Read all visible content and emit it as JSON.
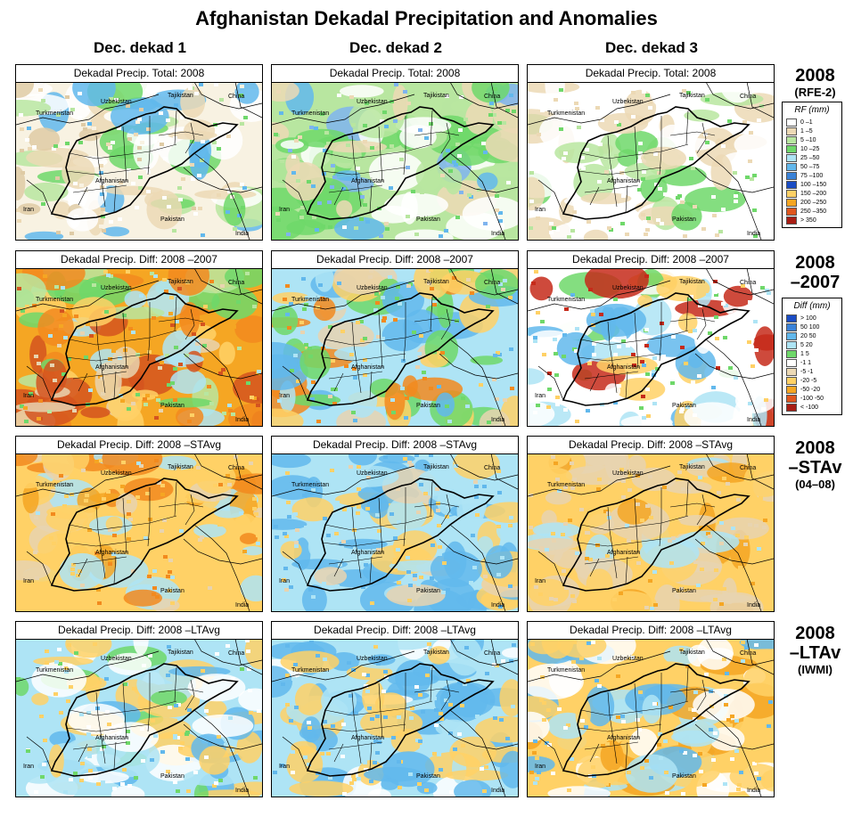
{
  "title": "Afghanistan Dekadal Precipitation and Anomalies",
  "columns": [
    "Dec. dekad 1",
    "Dec. dekad 2",
    "Dec. dekad 3"
  ],
  "rows": [
    {
      "panel_title": "Dekadal Precip. Total: 2008",
      "head_main": "2008",
      "head_sub": "(RFE-2)",
      "kind": "total",
      "palette": [
        [
          "#f8f2e2",
          "#dfcba5",
          "#ecd9b5",
          "#ffffff",
          "#ffffff",
          "#b8e6a0",
          "#6fd86a",
          "#62b8ec"
        ],
        [
          "#b8e6a0",
          "#6fd86a",
          "#62b8ec",
          "#ecd9b5",
          "#7fb4ee",
          "#ffffff",
          "#b8e6a0",
          "#6fd86a"
        ],
        [
          "#ffffff",
          "#ffffff",
          "#ecd9b5",
          "#b8e6a0",
          "#ecd9b5",
          "#ffffff",
          "#ffffff",
          "#6fd86a"
        ]
      ]
    },
    {
      "panel_title": "Dekadal Precip. Diff:  2008 –2007",
      "head_main": "2008",
      "head_sub2": "–2007",
      "kind": "diff",
      "palette": [
        [
          "#f5a623",
          "#f28a1e",
          "#ffd166",
          "#e8d4b0",
          "#b8e6a0",
          "#aee4f5",
          "#6fd86a",
          "#d4531f"
        ],
        [
          "#aee4f5",
          "#ffd166",
          "#6fd86a",
          "#f28a1e",
          "#62b8ec",
          "#e8d4b0",
          "#6fd86a",
          "#aee4f5"
        ],
        [
          "#ffffff",
          "#ffffff",
          "#aee4f5",
          "#ffd166",
          "#6fd86a",
          "#62b8ec",
          "#ffffff",
          "#c62a1a"
        ]
      ]
    },
    {
      "panel_title": "Dekadal Precip. Diff:  2008 –STAvg",
      "head_main": "2008",
      "head_sub2": "–STAv",
      "head_sub": "(04–08)",
      "kind": "diff",
      "palette": [
        [
          "#ffd166",
          "#f5a623",
          "#ffd166",
          "#e8d4b0",
          "#aee4f5",
          "#ffd166",
          "#f28a1e",
          "#ffd166"
        ],
        [
          "#aee4f5",
          "#62b8ec",
          "#ffd166",
          "#aee4f5",
          "#e8d4b0",
          "#62b8ec",
          "#ffd166",
          "#aee4f5"
        ],
        [
          "#ffd166",
          "#e8d4b0",
          "#ffd166",
          "#f5a623",
          "#e8d4b0",
          "#ffd166",
          "#aee4f5",
          "#e8d4b0"
        ]
      ]
    },
    {
      "panel_title": "Dekadal Precip. Diff:  2008 –LTAvg",
      "head_main": "2008",
      "head_sub2": "–LTAv",
      "head_sub": "(IWMI)",
      "kind": "diff",
      "palette": [
        [
          "#aee4f5",
          "#6fd86a",
          "#ffd166",
          "#ffffff",
          "#62b8ec",
          "#ffd166",
          "#aee4f5",
          "#ffffff"
        ],
        [
          "#aee4f5",
          "#62b8ec",
          "#ffd166",
          "#ffffff",
          "#62b8ec",
          "#aee4f5",
          "#ffd166",
          "#62b8ec"
        ],
        [
          "#ffd166",
          "#ffffff",
          "#ffd166",
          "#f5a623",
          "#aee4f5",
          "#ffffff",
          "#ffd166",
          "#62b8ec"
        ]
      ]
    }
  ],
  "map_labels": [
    "Uzbekistan",
    "Tajikistan",
    "China",
    "Turkmenistan",
    "Afghanistan",
    "Iran",
    "Pakistan",
    "India"
  ],
  "legend_rf": {
    "title": "RF (mm)",
    "items": [
      {
        "label": "0 –1",
        "color": "#ffffff"
      },
      {
        "label": "1 –5",
        "color": "#ecd9b5"
      },
      {
        "label": "5 –10",
        "color": "#b8e6a0"
      },
      {
        "label": "10 –25",
        "color": "#6fd86a"
      },
      {
        "label": "25 –50",
        "color": "#aee4f5"
      },
      {
        "label": "50 –75",
        "color": "#62b8ec"
      },
      {
        "label": "75 –100",
        "color": "#3a82d8"
      },
      {
        "label": "100 –150",
        "color": "#1a4cc4"
      },
      {
        "label": "150 –200",
        "color": "#ffd166"
      },
      {
        "label": "200 –250",
        "color": "#f5a623"
      },
      {
        "label": "250 –350",
        "color": "#e0561e"
      },
      {
        "label": "> 350",
        "color": "#a81d14"
      }
    ]
  },
  "legend_diff": {
    "title": "Diff (mm)",
    "items": [
      {
        "label": "> 100",
        "color": "#1a4cc4"
      },
      {
        "label": "50  100",
        "color": "#3a82d8"
      },
      {
        "label": "20  50",
        "color": "#62b8ec"
      },
      {
        "label": "5  20",
        "color": "#aee4f5"
      },
      {
        "label": "1  5",
        "color": "#6fd86a"
      },
      {
        "label": "-1  1",
        "color": "#ffffff"
      },
      {
        "label": "-5  -1",
        "color": "#ecd9b5"
      },
      {
        "label": "-20  -5",
        "color": "#ffd166"
      },
      {
        "label": "-50  -20",
        "color": "#f5a623"
      },
      {
        "label": "-100  -50",
        "color": "#e0561e"
      },
      {
        "label": "< -100",
        "color": "#a81d14"
      }
    ]
  }
}
